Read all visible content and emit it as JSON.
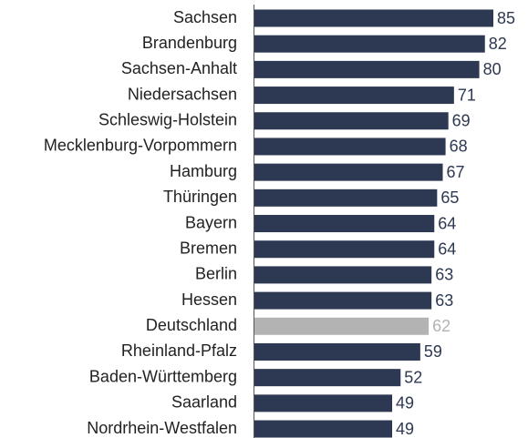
{
  "chart_data": {
    "type": "bar",
    "categories": [
      "Sachsen",
      "Brandenburg",
      "Sachsen-Anhalt",
      "Niedersachsen",
      "Schleswig-Holstein",
      "Mecklenburg-Vorpommern",
      "Hamburg",
      "Thüringen",
      "Bayern",
      "Bremen",
      "Berlin",
      "Hessen",
      "Deutschland",
      "Rheinland-Pfalz",
      "Baden-Württemberg",
      "Saarland",
      "Nordrhein-Westfalen"
    ],
    "values": [
      85,
      82,
      80,
      71,
      69,
      68,
      67,
      65,
      64,
      64,
      63,
      63,
      62,
      59,
      52,
      49,
      49
    ],
    "colors": [
      "#2d3852",
      "#2d3852",
      "#2d3852",
      "#2d3852",
      "#2d3852",
      "#2d3852",
      "#2d3852",
      "#2d3852",
      "#2d3852",
      "#2d3852",
      "#2d3852",
      "#2d3852",
      "#b3b3b3",
      "#2d3852",
      "#2d3852",
      "#2d3852",
      "#2d3852"
    ]
  }
}
